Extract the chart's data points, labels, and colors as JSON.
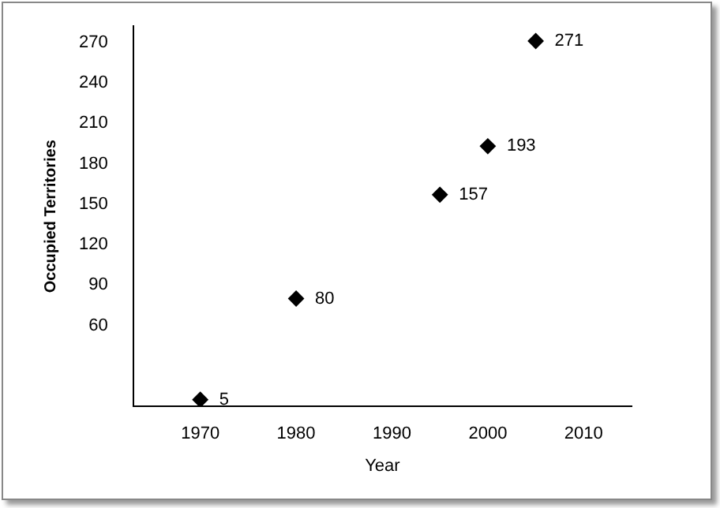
{
  "chart_data": {
    "type": "scatter",
    "xlabel": "Year",
    "ylabel": "Occupied Territories",
    "x": [
      1970,
      1980,
      1995,
      2000,
      2005
    ],
    "values": [
      5,
      80,
      157,
      193,
      271
    ],
    "color": "#000000",
    "marker": "diamond",
    "data_labels": true,
    "xlim": [
      1963,
      2015
    ],
    "xticks": [
      1970,
      1980,
      1990,
      2000,
      2010
    ],
    "ylim": [
      0,
      282
    ],
    "yticks": [
      60,
      90,
      120,
      150,
      180,
      210,
      240,
      270
    ],
    "grid": false,
    "legend": false
  }
}
